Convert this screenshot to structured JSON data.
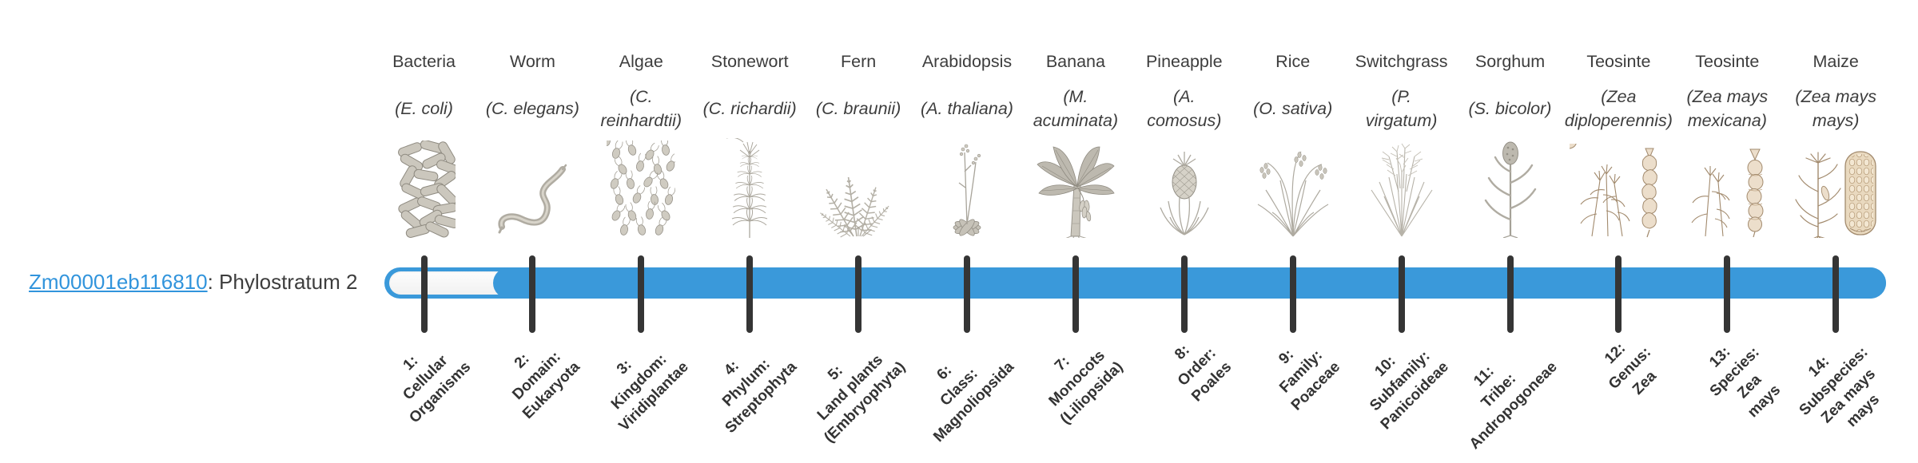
{
  "gene": {
    "id": "Zm00001eb116810",
    "phylostratum_text": ": Phylostratum 2"
  },
  "colors": {
    "bar_fill": "#3a99da",
    "tick": "#353535",
    "link_blue": "#3194dc",
    "text_dark": "#3d3d3d"
  },
  "strata": [
    {
      "index": 1,
      "organism": "Bacteria",
      "species": "(E. coli)",
      "icon": "bacteria-icon",
      "stratum_label": "1:\nCellular\nOrganisms"
    },
    {
      "index": 2,
      "organism": "Worm",
      "species": "(C. elegans)",
      "icon": "worm-icon",
      "stratum_label": "2:\nDomain:\nEukaryota"
    },
    {
      "index": 3,
      "organism": "Algae",
      "species": "(C.\nreinhardtii)",
      "icon": "algae-icon",
      "stratum_label": "3:\nKingdom:\nViridiplantae"
    },
    {
      "index": 4,
      "organism": "Stonewort",
      "species": "(C. richardii)",
      "icon": "stonewort-icon",
      "stratum_label": "4:\nPhylum:\nStreptophyta"
    },
    {
      "index": 5,
      "organism": "Fern",
      "species": "(C. braunii)",
      "icon": "fern-icon",
      "stratum_label": "5:\nLand plants\n(Embryophyta)"
    },
    {
      "index": 6,
      "organism": "Arabidopsis",
      "species": "(A. thaliana)",
      "icon": "arabidopsis-icon",
      "stratum_label": "6:\nClass:\nMagnoliopsida"
    },
    {
      "index": 7,
      "organism": "Banana",
      "species": "(M.\nacuminata)",
      "icon": "banana-icon",
      "stratum_label": "7:\nMonocots\n(Liliopsida)"
    },
    {
      "index": 8,
      "organism": "Pineapple",
      "species": "(A.\ncomosus)",
      "icon": "pineapple-icon",
      "stratum_label": "8:\nOrder:\nPoales"
    },
    {
      "index": 9,
      "organism": "Rice",
      "species": "(O. sativa)",
      "icon": "rice-icon",
      "stratum_label": "9:\nFamily:\nPoaceae"
    },
    {
      "index": 10,
      "organism": "Switchgrass",
      "species": "(P.\nvirgatum)",
      "icon": "switchgrass-icon",
      "stratum_label": "10:\nSubfamily:\nPanicoideae"
    },
    {
      "index": 11,
      "organism": "Sorghum",
      "species": "(S. bicolor)",
      "icon": "sorghum-icon",
      "stratum_label": "11:\nTribe:\nAndropogoneae"
    },
    {
      "index": 12,
      "organism": "Teosinte",
      "species": "(Zea\ndiploperennis)",
      "icon": "teosinte-diploperennis-icon",
      "stratum_label": "12:\nGenus:\nZea"
    },
    {
      "index": 13,
      "organism": "Teosinte",
      "species": "(Zea mays\nmexicana)",
      "icon": "teosinte-mexicana-icon",
      "stratum_label": "13:\nSpecies:\nZea\nmays"
    },
    {
      "index": 14,
      "organism": "Maize",
      "species": "(Zea mays\nmays)",
      "icon": "maize-icon",
      "stratum_label": "14:\nSubspecies:\nZea mays\nmays"
    }
  ]
}
